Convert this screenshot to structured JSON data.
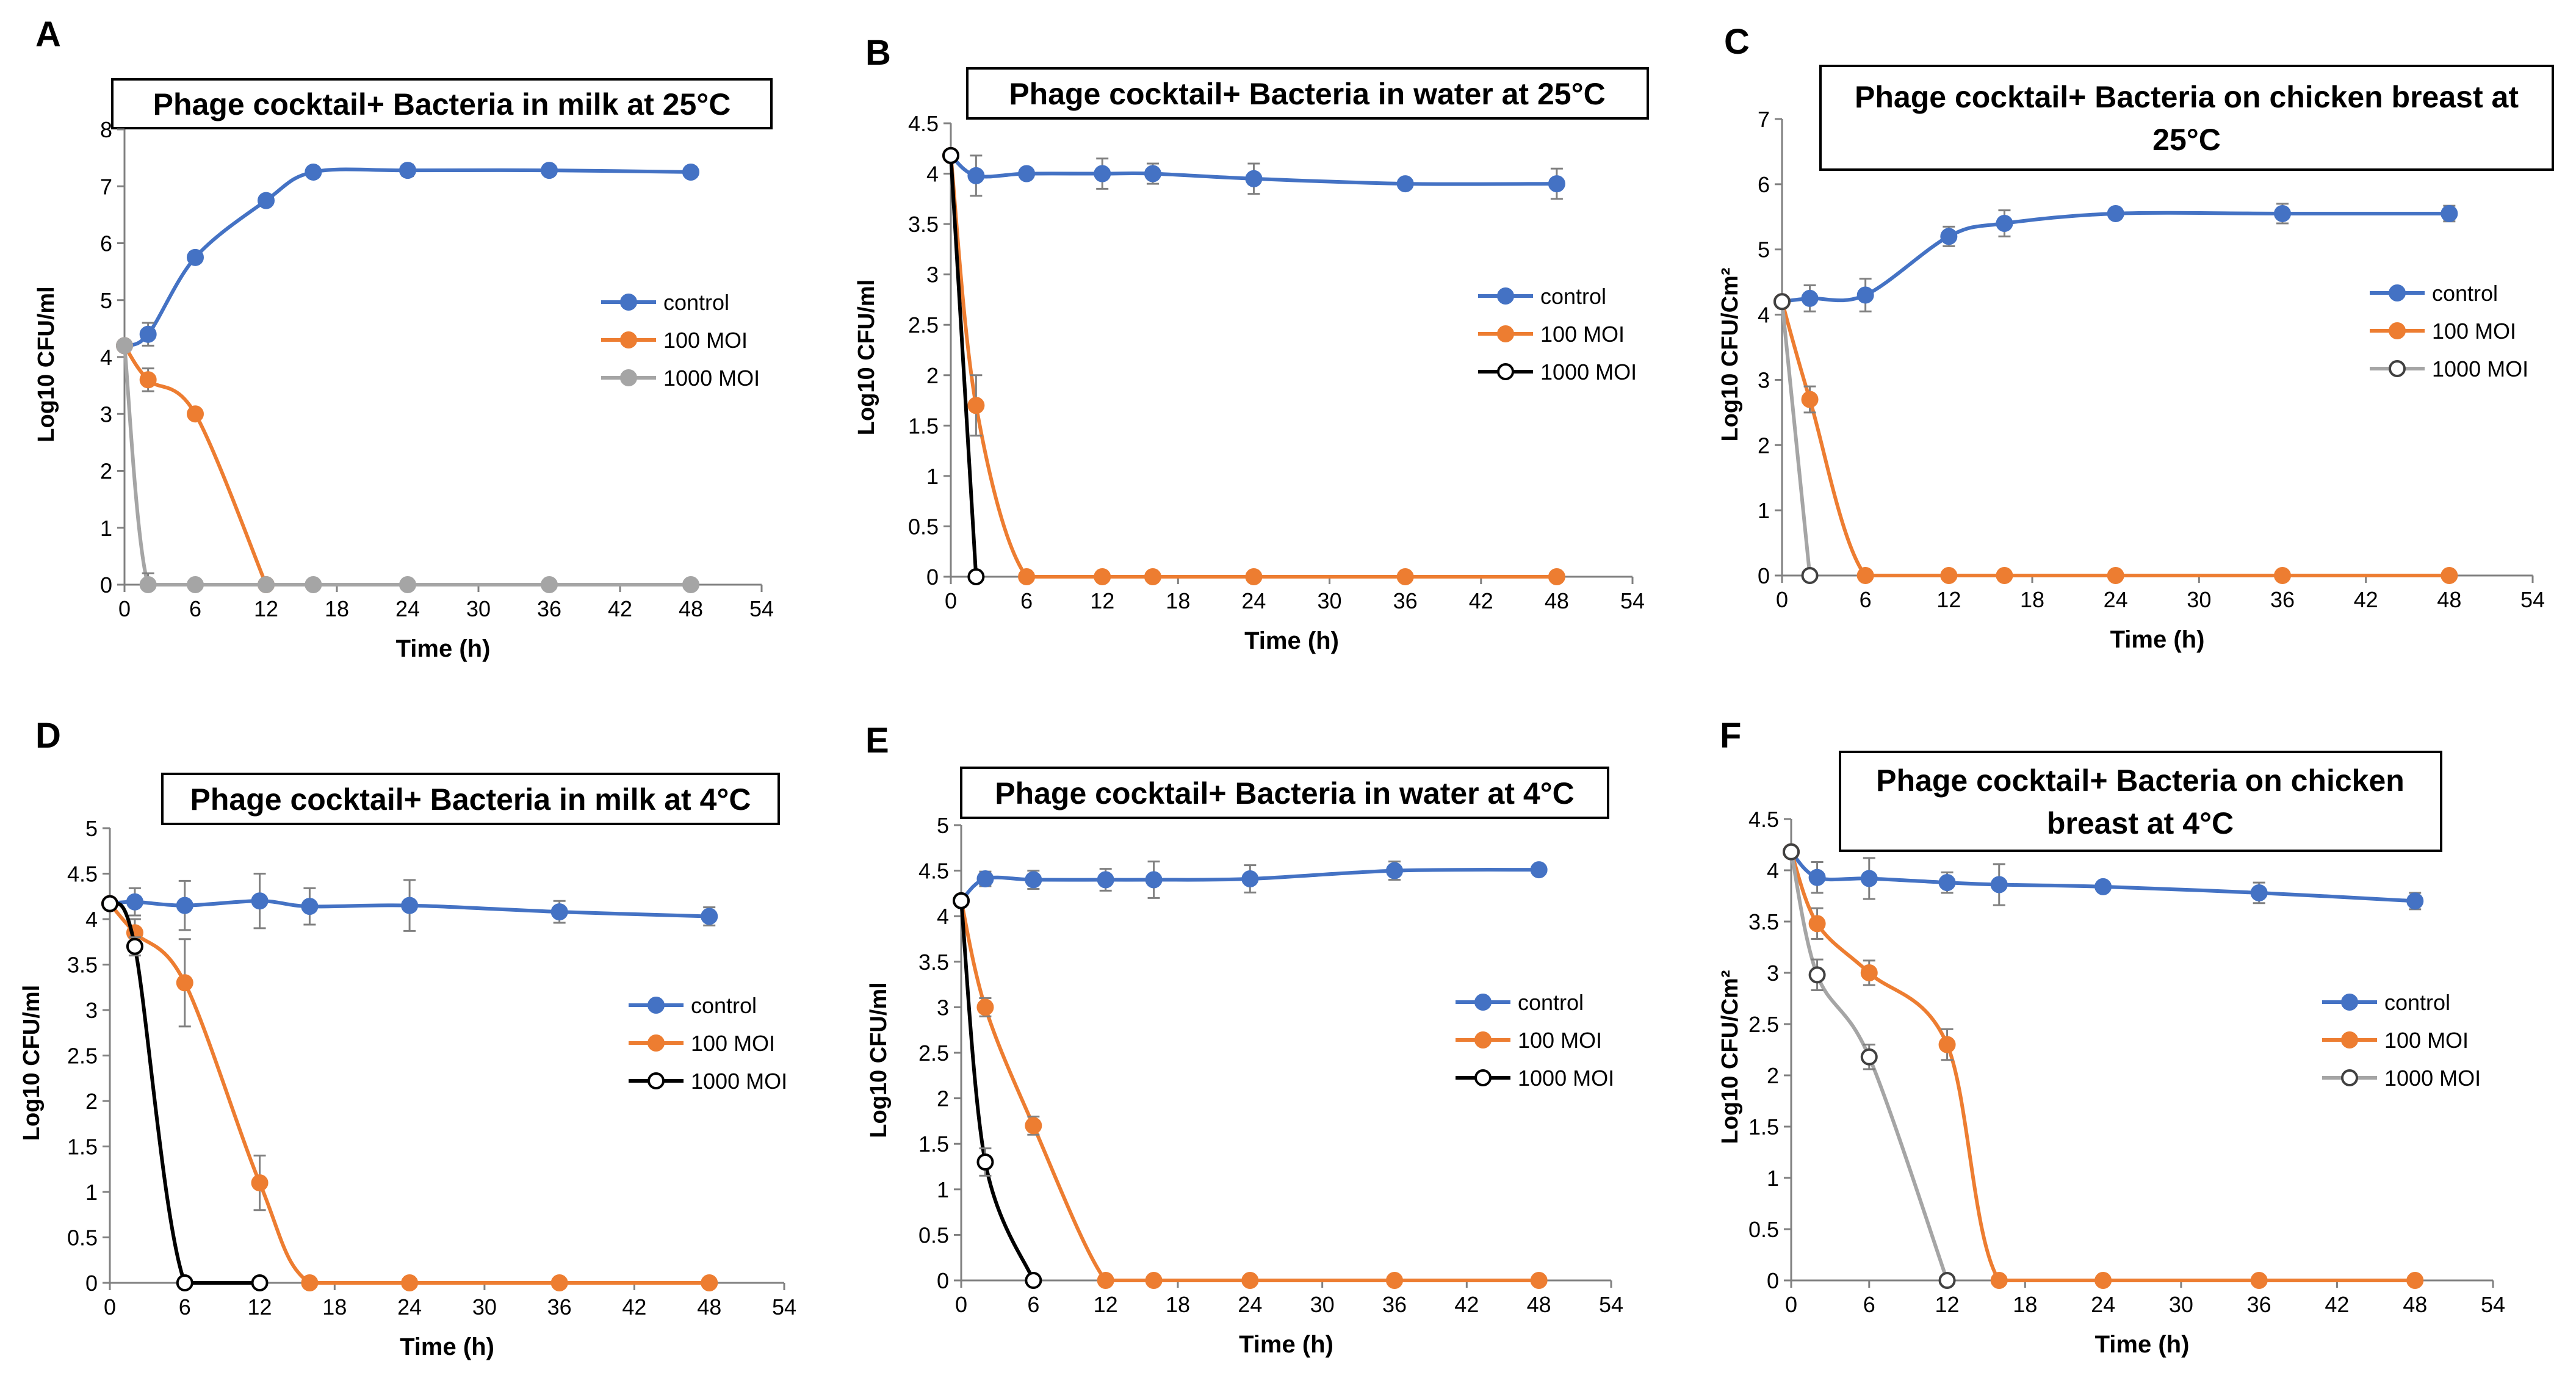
{
  "figure": {
    "colors": {
      "control": "#4472C4",
      "moi100": "#ED7D31",
      "moi1000_gray": "#A5A5A5",
      "moi1000_black": "#000000",
      "axis": "#808080",
      "errorbar": "#808080"
    }
  },
  "chart_data": [
    {
      "panel": "A",
      "type": "line",
      "title": "Phage cocktail+ Bacteria in milk at 25°C",
      "title_lines": [
        "Phage cocktail+ Bacteria in milk at 25°C"
      ],
      "xlabel": "Time (h)",
      "ylabel": "Log10 CFU/ml",
      "xlim": [
        0,
        54
      ],
      "xticks": [
        "0",
        "6",
        "12",
        "18",
        "24",
        "30",
        "36",
        "42",
        "48",
        "54"
      ],
      "ylim": [
        0,
        8
      ],
      "yticks": [
        "0",
        "1",
        "2",
        "3",
        "4",
        "5",
        "6",
        "7",
        "8"
      ],
      "legend": "right",
      "series": [
        {
          "name": "control",
          "style": "control",
          "x": [
            0,
            2,
            6,
            12,
            16,
            24,
            36,
            48
          ],
          "y": [
            4.2,
            4.4,
            5.75,
            6.75,
            7.25,
            7.28,
            7.28,
            7.25
          ],
          "err": [
            0,
            0.2,
            0.1,
            0.08,
            0.08,
            0.1,
            0.08,
            0.08
          ]
        },
        {
          "name": "100 MOI",
          "style": "moi100",
          "x": [
            0,
            2,
            6,
            12
          ],
          "y": [
            4.2,
            3.6,
            3.0,
            0
          ],
          "err": [
            0,
            0.2,
            0,
            0
          ]
        },
        {
          "name": "1000 MOI",
          "style": "gray_filled",
          "x": [
            0,
            2,
            6,
            12,
            16,
            24,
            36,
            48
          ],
          "y": [
            4.2,
            0,
            0,
            0,
            0,
            0,
            0,
            0
          ],
          "err": [
            0,
            0.2,
            0,
            0,
            0,
            0,
            0,
            0
          ]
        }
      ]
    },
    {
      "panel": "B",
      "type": "line",
      "title": "Phage cocktail+ Bacteria in water at 25°C",
      "title_lines": [
        "Phage cocktail+ Bacteria in water at 25°C"
      ],
      "xlabel": "Time (h)",
      "ylabel": "Log10 CFU/ml",
      "xlim": [
        0,
        54
      ],
      "xticks": [
        "0",
        "6",
        "12",
        "18",
        "24",
        "30",
        "36",
        "42",
        "48",
        "54"
      ],
      "ylim": [
        0,
        4.5
      ],
      "yticks": [
        "0",
        "0.5",
        "1",
        "1.5",
        "2",
        "2.5",
        "3",
        "3.5",
        "4",
        "4.5"
      ],
      "legend": "right",
      "series": [
        {
          "name": "control",
          "style": "control",
          "x": [
            0,
            2,
            6,
            12,
            16,
            24,
            36,
            48
          ],
          "y": [
            4.18,
            3.98,
            4.0,
            4.0,
            4.0,
            3.95,
            3.9,
            3.9
          ],
          "err": [
            0,
            0.2,
            0.05,
            0.15,
            0.1,
            0.15,
            0.05,
            0.15
          ]
        },
        {
          "name": "100 MOI",
          "style": "moi100",
          "x": [
            0,
            2,
            6,
            12,
            16,
            24,
            36,
            48
          ],
          "y": [
            4.18,
            1.7,
            0,
            0,
            0,
            0,
            0,
            0
          ],
          "err": [
            0,
            0.3,
            0,
            0,
            0,
            0,
            0,
            0
          ]
        },
        {
          "name": "1000 MOI",
          "style": "black_open",
          "x": [
            0,
            2
          ],
          "y": [
            4.18,
            0
          ],
          "err": [
            0,
            0
          ]
        }
      ]
    },
    {
      "panel": "C",
      "type": "line",
      "title": "Phage cocktail+ Bacteria on chicken breast at 25°C",
      "title_lines": [
        "Phage cocktail+ Bacteria on chicken breast at",
        "25°C"
      ],
      "xlabel": "Time (h)",
      "ylabel": "Log10 CFU/Cm²",
      "xlim": [
        0,
        54
      ],
      "xticks": [
        "0",
        "6",
        "12",
        "18",
        "24",
        "30",
        "36",
        "42",
        "48",
        "54"
      ],
      "ylim": [
        0,
        7
      ],
      "yticks": [
        "0",
        "1",
        "2",
        "3",
        "4",
        "5",
        "6",
        "7"
      ],
      "legend": "right",
      "series": [
        {
          "name": "control",
          "style": "control",
          "x": [
            0,
            2,
            6,
            12,
            16,
            24,
            36,
            48
          ],
          "y": [
            4.2,
            4.25,
            4.3,
            5.2,
            5.4,
            5.55,
            5.55,
            5.55
          ],
          "err": [
            0,
            0.2,
            0.25,
            0.15,
            0.2,
            0.08,
            0.15,
            0.12
          ]
        },
        {
          "name": "100 MOI",
          "style": "moi100",
          "x": [
            0,
            2,
            6,
            12,
            16,
            24,
            36,
            48
          ],
          "y": [
            4.2,
            2.7,
            0,
            0,
            0,
            0,
            0,
            0
          ],
          "err": [
            0,
            0.2,
            0,
            0,
            0,
            0,
            0,
            0
          ]
        },
        {
          "name": "1000 MOI",
          "style": "gray_open",
          "x": [
            0,
            2
          ],
          "y": [
            4.2,
            0
          ],
          "err": [
            0,
            0
          ]
        }
      ]
    },
    {
      "panel": "D",
      "type": "line",
      "title": "Phage cocktail+ Bacteria in milk at 4°C",
      "title_lines": [
        "Phage cocktail+ Bacteria in milk at 4°C"
      ],
      "xlabel": "Time (h)",
      "ylabel": "Log10 CFU/ml",
      "xlim": [
        0,
        54
      ],
      "xticks": [
        "0",
        "6",
        "12",
        "18",
        "24",
        "30",
        "36",
        "42",
        "48",
        "54"
      ],
      "ylim": [
        0,
        5
      ],
      "yticks": [
        "0",
        "0.5",
        "1",
        "1.5",
        "2",
        "2.5",
        "3",
        "3.5",
        "4",
        "4.5",
        "5"
      ],
      "legend": "right",
      "series": [
        {
          "name": "control",
          "style": "control",
          "x": [
            0,
            2,
            6,
            12,
            16,
            24,
            36,
            48
          ],
          "y": [
            4.17,
            4.19,
            4.15,
            4.2,
            4.14,
            4.15,
            4.08,
            4.03
          ],
          "err": [
            0,
            0.15,
            0.27,
            0.3,
            0.2,
            0.28,
            0.12,
            0.1
          ]
        },
        {
          "name": "100 MOI",
          "style": "moi100",
          "x": [
            0,
            2,
            6,
            12,
            16,
            24,
            36,
            48
          ],
          "y": [
            4.17,
            3.85,
            3.3,
            1.1,
            0,
            0,
            0,
            0
          ],
          "err": [
            0,
            0.15,
            0.48,
            0.3,
            0,
            0,
            0,
            0
          ]
        },
        {
          "name": "1000 MOI",
          "style": "black_open",
          "x": [
            0,
            2,
            6,
            12
          ],
          "y": [
            4.17,
            3.7,
            0,
            0
          ],
          "err": [
            0,
            0.1,
            0,
            0
          ]
        }
      ]
    },
    {
      "panel": "E",
      "type": "line",
      "title": "Phage cocktail+ Bacteria in water at 4°C",
      "title_lines": [
        "Phage cocktail+ Bacteria in water at 4°C"
      ],
      "xlabel": "Time (h)",
      "ylabel": "Log10 CFU/ml",
      "xlim": [
        0,
        54
      ],
      "xticks": [
        "0",
        "6",
        "12",
        "18",
        "24",
        "30",
        "36",
        "42",
        "48",
        "54"
      ],
      "ylim": [
        0,
        5
      ],
      "yticks": [
        "0",
        "0.5",
        "1",
        "1.5",
        "2",
        "2.5",
        "3",
        "3.5",
        "4",
        "4.5",
        "5"
      ],
      "legend": "right",
      "series": [
        {
          "name": "control",
          "style": "control",
          "x": [
            0,
            2,
            6,
            12,
            16,
            24,
            36,
            48
          ],
          "y": [
            4.17,
            4.41,
            4.4,
            4.4,
            4.4,
            4.41,
            4.5,
            4.51
          ],
          "err": [
            0,
            0.08,
            0.1,
            0.12,
            0.2,
            0.15,
            0.1,
            0.05
          ]
        },
        {
          "name": "100 MOI",
          "style": "moi100",
          "x": [
            0,
            2,
            6,
            12,
            16,
            24,
            36,
            48
          ],
          "y": [
            4.17,
            3.0,
            1.7,
            0,
            0,
            0,
            0,
            0
          ],
          "err": [
            0,
            0.1,
            0.1,
            0,
            0,
            0,
            0,
            0
          ]
        },
        {
          "name": "1000 MOI",
          "style": "black_open",
          "x": [
            0,
            2,
            6
          ],
          "y": [
            4.17,
            1.3,
            0
          ],
          "err": [
            0,
            0.15,
            0
          ]
        }
      ]
    },
    {
      "panel": "F",
      "type": "line",
      "title": "Phage cocktail+ Bacteria on chicken breast at 4°C",
      "title_lines": [
        "Phage cocktail+ Bacteria on chicken",
        "breast  at 4°C"
      ],
      "xlabel": "Time (h)",
      "ylabel": "Log10 CFU/Cm²",
      "xlim": [
        0,
        54
      ],
      "xticks": [
        "0",
        "6",
        "12",
        "18",
        "24",
        "30",
        "36",
        "42",
        "48",
        "54"
      ],
      "ylim": [
        0,
        4.5
      ],
      "yticks": [
        "0",
        "0.5",
        "1",
        "1.5",
        "2",
        "2.5",
        "3",
        "3.5",
        "4",
        "4.5"
      ],
      "legend": "right",
      "series": [
        {
          "name": "control",
          "style": "control",
          "x": [
            0,
            2,
            6,
            12,
            16,
            24,
            36,
            48
          ],
          "y": [
            4.18,
            3.93,
            3.92,
            3.88,
            3.86,
            3.84,
            3.78,
            3.7
          ],
          "err": [
            0,
            0.15,
            0.2,
            0.1,
            0.2,
            0,
            0.1,
            0.08
          ]
        },
        {
          "name": "100 MOI",
          "style": "moi100",
          "x": [
            0,
            2,
            6,
            12,
            16,
            24,
            36,
            48
          ],
          "y": [
            4.18,
            3.48,
            3.0,
            2.3,
            0,
            0,
            0,
            0
          ],
          "err": [
            0,
            0.15,
            0.12,
            0.15,
            0,
            0,
            0,
            0
          ]
        },
        {
          "name": "1000 MOI",
          "style": "gray_open",
          "x": [
            0,
            2,
            6,
            12
          ],
          "y": [
            4.18,
            2.98,
            2.18,
            0
          ],
          "err": [
            0,
            0.15,
            0.12,
            0
          ]
        }
      ]
    }
  ]
}
